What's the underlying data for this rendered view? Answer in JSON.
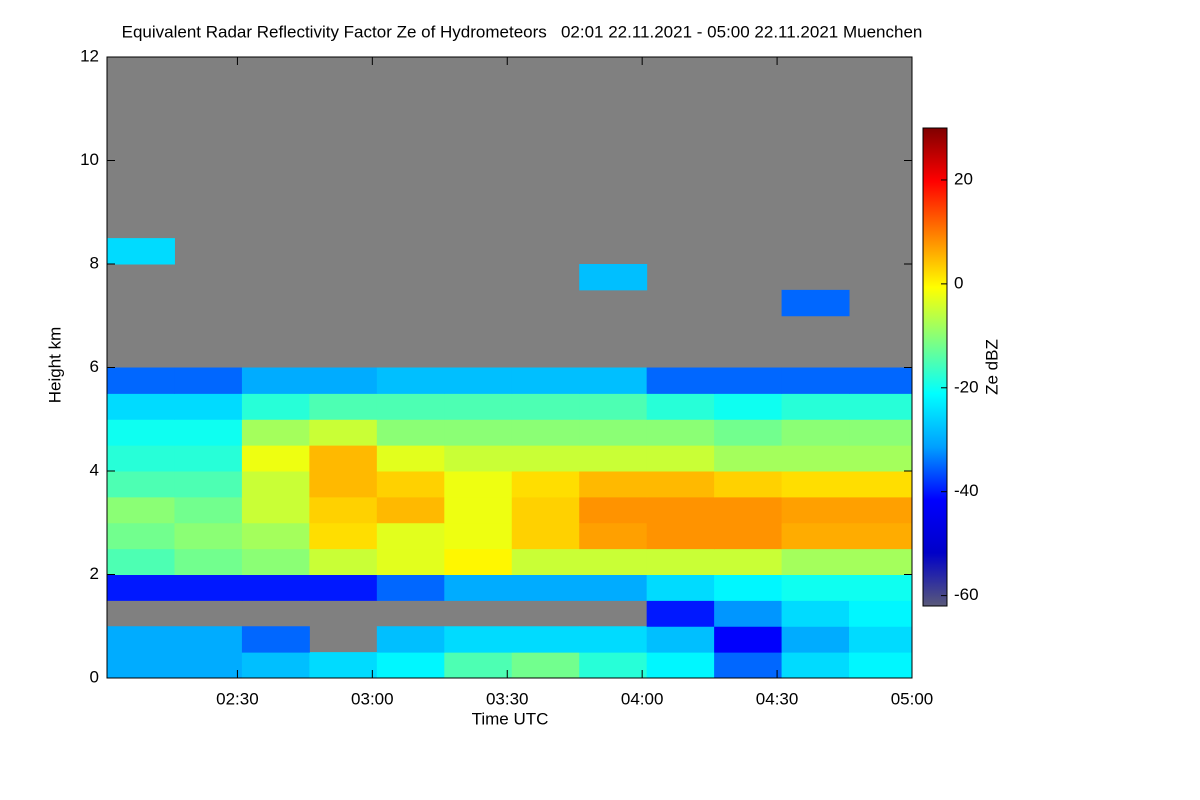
{
  "chart_data": {
    "type": "heatmap",
    "title": "Equivalent Radar Reflectivity Factor Ze of Hydrometeors   02:01 22.11.2021 - 05:00 22.11.2021 Muenchen",
    "xlabel": "Time UTC",
    "ylabel": "Height km",
    "colorbar_label": "Ze dBZ",
    "x": [
      "02:01",
      "02:16",
      "02:31",
      "02:46",
      "03:01",
      "03:16",
      "03:31",
      "03:46",
      "04:01",
      "04:16",
      "04:31",
      "04:46",
      "05:00"
    ],
    "y": [
      0,
      0.5,
      1,
      1.5,
      2,
      2.5,
      3,
      3.5,
      4,
      4.5,
      5,
      5.5,
      6,
      6.5,
      7,
      7.5,
      8,
      8.5,
      9,
      9.5,
      10,
      10.5,
      11,
      11.5,
      12
    ],
    "values": [
      [
        -30,
        -30,
        -28,
        -25,
        -22,
        -15,
        -12,
        -18,
        -22,
        -35,
        -25,
        -22
      ],
      [
        -30,
        -30,
        -35,
        null,
        -28,
        -25,
        -25,
        -25,
        -28,
        -42,
        -30,
        -25
      ],
      [
        null,
        null,
        null,
        null,
        null,
        null,
        null,
        null,
        -40,
        -32,
        -25,
        -22
      ],
      [
        -40,
        -40,
        -40,
        -40,
        -35,
        -30,
        -30,
        -30,
        -25,
        -22,
        -20,
        -20
      ],
      [
        -15,
        -12,
        -10,
        -5,
        -3,
        0,
        -5,
        -5,
        -5,
        -5,
        -8,
        -8
      ],
      [
        -12,
        -10,
        -8,
        2,
        -3,
        -2,
        3,
        7,
        8,
        8,
        6,
        6
      ],
      [
        -10,
        -12,
        -5,
        3,
        5,
        -2,
        3,
        8,
        8,
        8,
        7,
        7
      ],
      [
        -15,
        -15,
        -5,
        5,
        3,
        -2,
        2,
        5,
        5,
        3,
        2,
        2
      ],
      [
        -18,
        -18,
        -2,
        5,
        -3,
        -5,
        -5,
        -5,
        -5,
        -8,
        -8,
        -8
      ],
      [
        -20,
        -20,
        -8,
        -5,
        -10,
        -10,
        -10,
        -10,
        -10,
        -12,
        -10,
        -10
      ],
      [
        -25,
        -25,
        -18,
        -15,
        -15,
        -15,
        -15,
        -15,
        -18,
        -20,
        -18,
        -18
      ],
      [
        -35,
        -35,
        -30,
        -30,
        -28,
        -28,
        -28,
        -28,
        -35,
        -35,
        -35,
        -35
      ],
      [
        null,
        null,
        null,
        null,
        null,
        null,
        null,
        null,
        null,
        null,
        null,
        null
      ],
      [
        null,
        null,
        null,
        null,
        null,
        null,
        null,
        null,
        null,
        null,
        null,
        null
      ],
      [
        null,
        null,
        null,
        null,
        null,
        null,
        null,
        null,
        null,
        null,
        -35,
        null
      ],
      [
        null,
        null,
        null,
        null,
        null,
        null,
        null,
        -28,
        null,
        null,
        null,
        null
      ],
      [
        -25,
        null,
        null,
        null,
        null,
        null,
        null,
        null,
        null,
        null,
        null,
        null
      ],
      [
        null,
        null,
        null,
        null,
        null,
        null,
        null,
        null,
        null,
        null,
        null,
        null
      ],
      [
        null,
        null,
        null,
        null,
        null,
        null,
        null,
        null,
        null,
        null,
        null,
        null
      ],
      [
        null,
        null,
        null,
        null,
        null,
        null,
        null,
        null,
        null,
        null,
        null,
        null
      ],
      [
        null,
        null,
        null,
        null,
        null,
        null,
        null,
        null,
        null,
        null,
        null,
        null
      ],
      [
        null,
        null,
        null,
        null,
        null,
        null,
        null,
        null,
        null,
        null,
        null,
        null
      ],
      [
        null,
        null,
        null,
        null,
        null,
        null,
        null,
        null,
        null,
        null,
        null,
        null
      ],
      [
        null,
        null,
        null,
        null,
        null,
        null,
        null,
        null,
        null,
        null,
        null,
        null
      ]
    ],
    "xlim": [
      "02:01",
      "05:00"
    ],
    "xticks": [
      "02:30",
      "03:00",
      "03:30",
      "04:00",
      "04:30",
      "05:00"
    ],
    "ylim": [
      0,
      12
    ],
    "yticks": [
      0,
      2,
      4,
      6,
      8,
      10,
      12
    ],
    "zlim": [
      -62,
      30
    ],
    "zticks": [
      -60,
      -40,
      -20,
      0,
      20
    ],
    "colormap": [
      "#5a5a7a",
      "#0000c8",
      "#0000ff",
      "#00a0ff",
      "#00ffff",
      "#80ff80",
      "#ffff00",
      "#ff8000",
      "#ff0000",
      "#800000"
    ],
    "background": "#808080"
  }
}
